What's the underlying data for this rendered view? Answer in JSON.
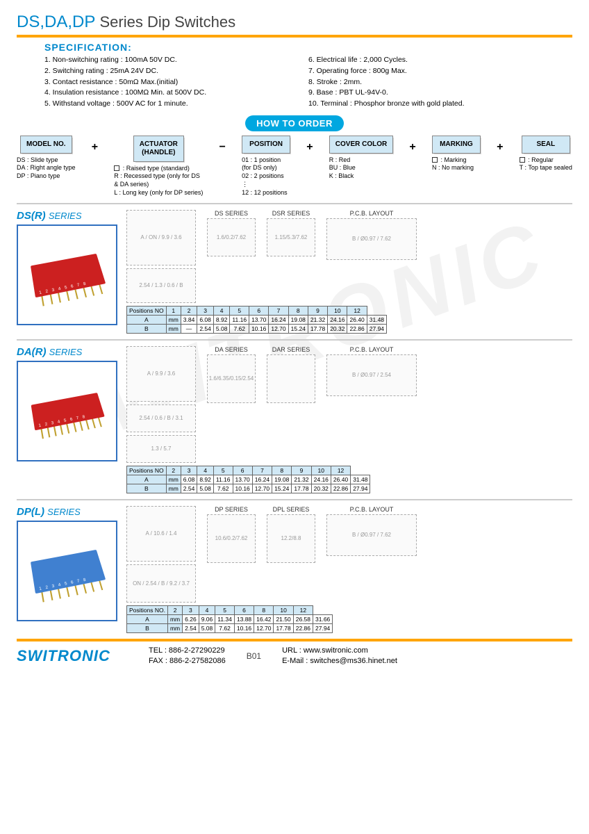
{
  "title": {
    "series": "DS,DA,DP",
    "rest": " Series Dip Switches"
  },
  "spec": {
    "heading": "SPECIFICATION:",
    "left": [
      "1. Non-switching rating : 100mA 50V DC.",
      "2. Switching rating : 25mA 24V DC.",
      "3. Contact resistance : 50mΩ Max.(initial)",
      "4. Insulation resistance : 100MΩ Min. at 500V DC.",
      "5. Withstand voltage : 500V AC for 1 minute."
    ],
    "right": [
      "6. Electrical life : 2,000 Cycles.",
      "7. Operating force : 800g Max.",
      "8. Stroke : 2mm.",
      "9. Base : PBT UL-94V-0.",
      "10. Terminal : Phosphor bronze with gold plated."
    ]
  },
  "howto": "HOW TO ORDER",
  "order": [
    {
      "box": "MODEL NO.",
      "op": "+",
      "desc": "DS : Slide type\nDA : Right angle type\nDP : Piano type"
    },
    {
      "box": "ACTUATOR\n(HANDLE)",
      "op": "−",
      "desc": "☐ : Raised type (standard)\nR : Recessed type (only for DS\n     & DA series)\nL : Long key (only for DP series)"
    },
    {
      "box": "POSITION",
      "op": "+",
      "desc": "01 : 1 position\n(for DS only)\n02 : 2 positions\n⋮\n12 : 12 positions"
    },
    {
      "box": "COVER COLOR",
      "op": "+",
      "desc": "R : Red\nBU : Blue\nK : Black"
    },
    {
      "box": "MARKING",
      "op": "+",
      "desc": "☐ : Marking\nN : No marking"
    },
    {
      "box": "SEAL",
      "op": "",
      "desc": "☐ : Regular\nT : Top tape sealed"
    }
  ],
  "dsr": {
    "title": "DS(R)",
    "sub": "SERIES",
    "labels": {
      "ds": "DS SERIES",
      "dsr": "DSR SERIES",
      "pcb": "P.C.B. LAYOUT"
    },
    "dims": {
      "a": "A",
      "b": "B",
      "on": "ON",
      "h": "9.9",
      "t": "3.6",
      "p": "2.54",
      "g": "1.3",
      "pw": "0.6",
      "sh": "5.7",
      "sb": "3.7",
      "w1": "1.6",
      "w2": "0.2",
      "w3": "7.62",
      "h1": "1.15",
      "h2": "5.3",
      "d": "Ø0.97",
      "py": "7.62"
    },
    "table": {
      "header": [
        "Positions NO",
        "1",
        "2",
        "3",
        "4",
        "5",
        "6",
        "7",
        "8",
        "9",
        "10",
        "12"
      ],
      "rows": [
        [
          "A",
          "mm",
          "3.84",
          "6.08",
          "8.92",
          "11.16",
          "13.70",
          "16.24",
          "19.08",
          "21.32",
          "24.16",
          "26.40",
          "31.48"
        ],
        [
          "B",
          "mm",
          "—",
          "2.54",
          "5.08",
          "7.62",
          "10.16",
          "12.70",
          "15.24",
          "17.78",
          "20.32",
          "22.86",
          "27.94"
        ]
      ]
    }
  },
  "dar": {
    "title": "DA(R)",
    "sub": "SERIES",
    "labels": {
      "da": "DA SERIES",
      "dar": "DAR SERIES",
      "pcb": "P.C.B. LAYOUT"
    },
    "dims": {
      "a": "A",
      "b": "B",
      "h": "9.9",
      "t": "3.6",
      "p": "2.54",
      "g": "1.3",
      "pw": "0.6",
      "sh": "3.1",
      "w1": "1.6",
      "w2": "6.35",
      "w3": "0.15",
      "w4": "2.54",
      "d": "Ø0.97",
      "py": "2.54"
    },
    "table": {
      "header": [
        "Positions NO",
        "2",
        "3",
        "4",
        "5",
        "6",
        "7",
        "8",
        "9",
        "10",
        "12"
      ],
      "rows": [
        [
          "A",
          "mm",
          "6.08",
          "8.92",
          "11.16",
          "13.70",
          "16.24",
          "19.08",
          "21.32",
          "24.16",
          "26.40",
          "31.48"
        ],
        [
          "B",
          "mm",
          "2.54",
          "5.08",
          "7.62",
          "10.16",
          "12.70",
          "15.24",
          "17.78",
          "20.32",
          "22.86",
          "27.94"
        ]
      ]
    }
  },
  "dpl": {
    "title": "DP(L)",
    "sub": "SERIES",
    "labels": {
      "dp": "DP SERIES",
      "dpl": "DPL SERIES",
      "pcb": "P.C.B. LAYOUT"
    },
    "dims": {
      "a": "A",
      "b": "B",
      "h": "10.6",
      "p": "2.54",
      "g": "1.4",
      "sh": "9.2",
      "sb": "3.7",
      "w1": "10.6",
      "w2": "12.2",
      "w3": "0.2",
      "w4": "7.62",
      "h1": "8.8",
      "d": "Ø0.97",
      "py": "7.62",
      "on": "ON"
    },
    "table": {
      "header": [
        "Positions NO.",
        "2",
        "3",
        "4",
        "5",
        "6",
        "8",
        "10",
        "12"
      ],
      "rows": [
        [
          "A",
          "mm",
          "6.26",
          "9.06",
          "11.34",
          "13.88",
          "16.42",
          "21.50",
          "26.58",
          "31.66"
        ],
        [
          "B",
          "mm",
          "2.54",
          "5.08",
          "7.62",
          "10.16",
          "12.70",
          "17.78",
          "22.86",
          "27.94"
        ]
      ]
    }
  },
  "footer": {
    "logo": "SWITRONIC",
    "tel": "TEL : 886-2-27290229",
    "fax": "FAX : 886-2-27582086",
    "page": "B01",
    "url": "URL   : www.switronic.com",
    "email": "E-Mail : switches@ms36.hinet.net"
  },
  "watermark": "SWITRONIC"
}
